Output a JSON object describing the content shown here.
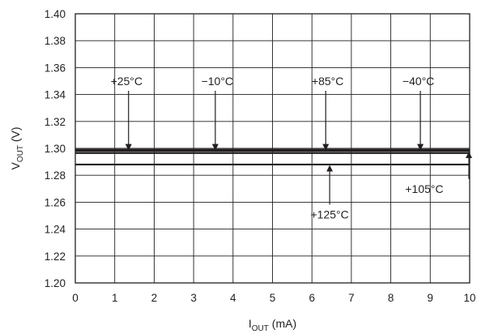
{
  "chart_data": {
    "type": "line",
    "xlabel": {
      "main": "I",
      "sub": "OUT",
      "tail": " (mA)"
    },
    "ylabel": {
      "main": "V",
      "sub": "OUT",
      "tail": " (V)"
    },
    "xlim": [
      0,
      10
    ],
    "ylim": [
      1.2,
      1.4
    ],
    "x_ticks": [
      "0",
      "1",
      "2",
      "3",
      "4",
      "5",
      "6",
      "7",
      "8",
      "9",
      "10"
    ],
    "y_ticks": [
      "1.20",
      "1.22",
      "1.24",
      "1.26",
      "1.28",
      "1.30",
      "1.32",
      "1.34",
      "1.36",
      "1.38",
      "1.40"
    ],
    "grid": true,
    "series": [
      {
        "name": "+25°C",
        "x": [
          0,
          10
        ],
        "y": [
          1.2985,
          1.2985
        ]
      },
      {
        "name": "−10°C",
        "x": [
          0,
          10
        ],
        "y": [
          1.2985,
          1.2985
        ]
      },
      {
        "name": "+85°C",
        "x": [
          0,
          10
        ],
        "y": [
          1.2985,
          1.2985
        ]
      },
      {
        "name": "−40°C",
        "x": [
          0,
          10
        ],
        "y": [
          1.2985,
          1.2985
        ]
      },
      {
        "name": "+105°C",
        "x": [
          0,
          10
        ],
        "y": [
          1.2965,
          1.2965
        ]
      },
      {
        "name": "+125°C",
        "x": [
          0,
          10
        ],
        "y": [
          1.288,
          1.288
        ]
      }
    ],
    "annotations": [
      {
        "text": "+25°C",
        "series": "+25°C",
        "label_xy": [
          1.3,
          1.347
        ],
        "arrow_to": [
          1.35,
          1.299
        ]
      },
      {
        "text": "−10°C",
        "series": "−10°C",
        "label_xy": [
          3.6,
          1.347
        ],
        "arrow_to": [
          3.55,
          1.299
        ]
      },
      {
        "text": "+85°C",
        "series": "+85°C",
        "label_xy": [
          6.4,
          1.347
        ],
        "arrow_to": [
          6.35,
          1.299
        ]
      },
      {
        "text": "−40°C",
        "series": "−40°C",
        "label_xy": [
          8.7,
          1.347
        ],
        "arrow_to": [
          8.75,
          1.299
        ]
      },
      {
        "text": "+105°C",
        "series": "+105°C",
        "label_xy": [
          8.85,
          1.267
        ],
        "arrow_to": [
          9.98,
          1.297
        ]
      },
      {
        "text": "+125°C",
        "series": "+125°C",
        "label_xy": [
          6.45,
          1.248
        ],
        "arrow_to": [
          6.45,
          1.287
        ]
      }
    ]
  }
}
